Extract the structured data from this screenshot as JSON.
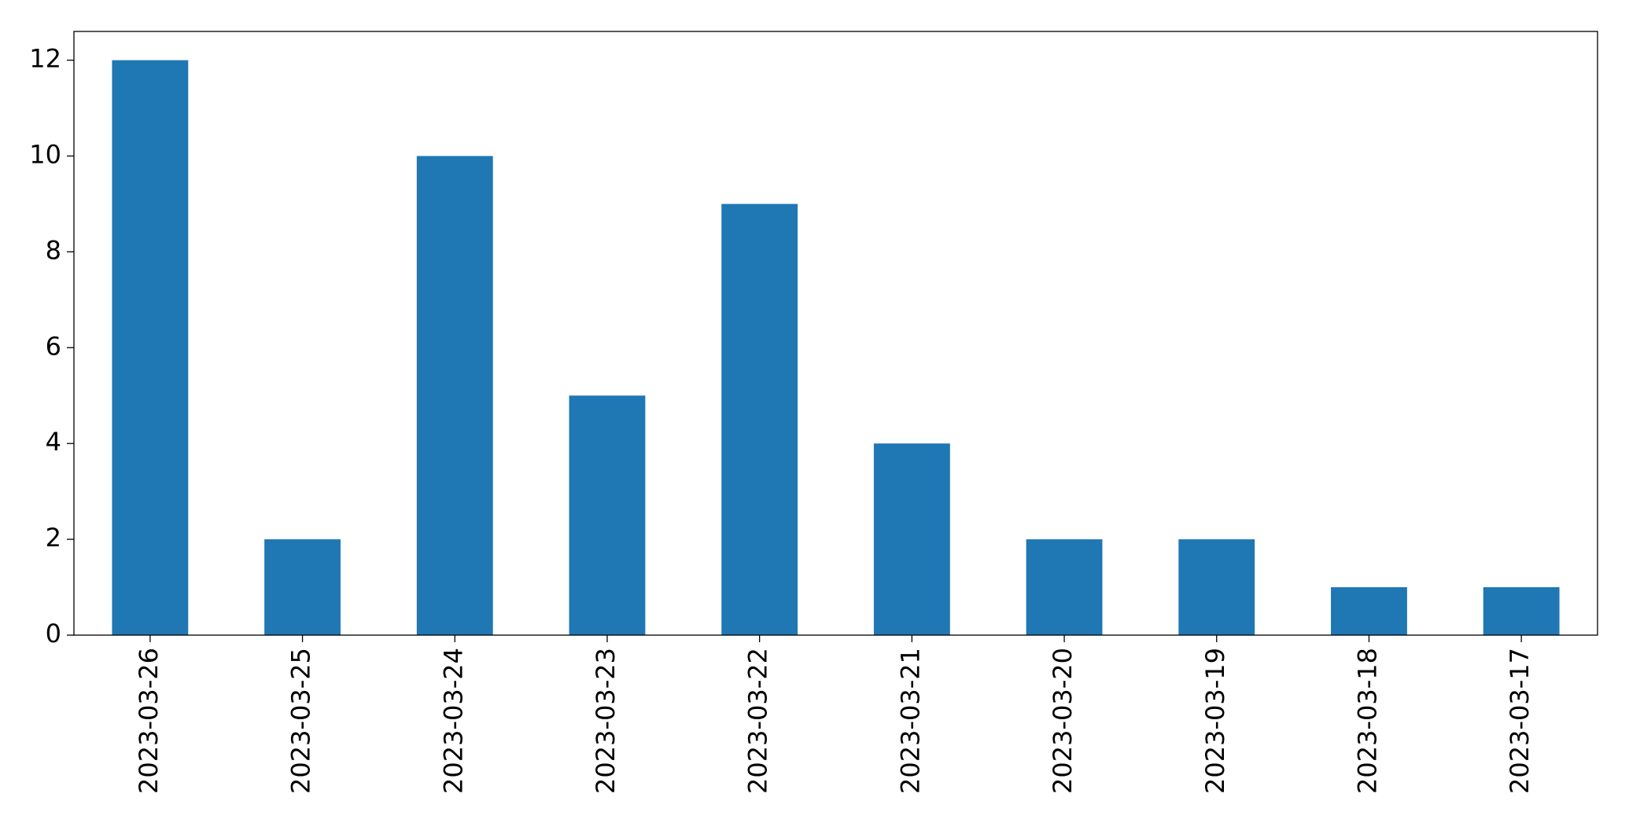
{
  "chart_data": {
    "type": "bar",
    "categories": [
      "2023-03-26",
      "2023-03-25",
      "2023-03-24",
      "2023-03-23",
      "2023-03-22",
      "2023-03-21",
      "2023-03-20",
      "2023-03-19",
      "2023-03-18",
      "2023-03-17"
    ],
    "values": [
      12,
      2,
      10,
      5,
      9,
      4,
      2,
      2,
      1,
      1
    ],
    "color": "#1f77b4",
    "ylim": [
      0,
      12.6
    ],
    "yticks": [
      0,
      2,
      4,
      6,
      8,
      10,
      12
    ],
    "grid": false
  }
}
